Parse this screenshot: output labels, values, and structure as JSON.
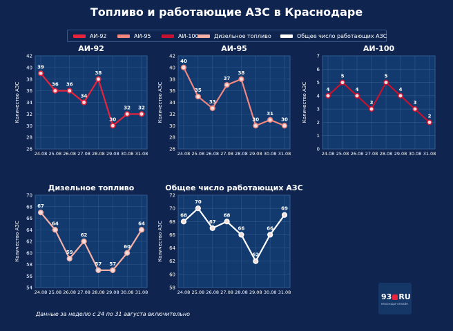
{
  "title": "Топливо и работающие АЗС в Краснодаре",
  "legend": [
    {
      "label": "АИ-92",
      "color": "#e8243c"
    },
    {
      "label": "АИ-95",
      "color": "#f08880"
    },
    {
      "label": "АИ-100",
      "color": "#c41230"
    },
    {
      "label": "Дизельное топливо",
      "color": "#f4b0a6"
    },
    {
      "label": "Общее число работающих АЗС",
      "color": "#ffffff"
    }
  ],
  "footnote": "Данные за неделю с 24 по 31 августа включительно",
  "logo": {
    "text": "93",
    "suffix": "RU",
    "subtext": "КРАСНОДАР ОНЛАЙН"
  },
  "colors": {
    "background": "#0f2550",
    "panel": "#123a6e",
    "grid": "#2f5a8e"
  },
  "chart_data": [
    {
      "type": "line",
      "title": "АИ-92",
      "ylabel": "Количество АЗС",
      "categories": [
        "24.08",
        "25.08",
        "26.08",
        "27.08",
        "28.08",
        "29.08",
        "30.08",
        "31.08"
      ],
      "series": [
        {
          "name": "АИ-92",
          "values": [
            39,
            36,
            36,
            34,
            38,
            30,
            32,
            32
          ],
          "color": "#e8243c"
        }
      ],
      "ylim": [
        26,
        42
      ],
      "yticks": [
        26,
        28,
        30,
        32,
        34,
        36,
        38,
        40,
        42
      ],
      "grid": true
    },
    {
      "type": "line",
      "title": "АИ-95",
      "ylabel": "Количество АЗС",
      "categories": [
        "24.08",
        "25.08",
        "26.08",
        "27.08",
        "28.08",
        "29.08",
        "30.08",
        "31.08"
      ],
      "series": [
        {
          "name": "АИ-95",
          "values": [
            40,
            35,
            33,
            37,
            38,
            30,
            31,
            30
          ],
          "color": "#f08880"
        }
      ],
      "ylim": [
        26,
        42
      ],
      "yticks": [
        26,
        28,
        30,
        32,
        34,
        36,
        38,
        40,
        42
      ],
      "grid": true
    },
    {
      "type": "line",
      "title": "АИ-100",
      "ylabel": "Количество АЗС",
      "categories": [
        "24.08",
        "25.08",
        "26.08",
        "27.08",
        "28.08",
        "29.08",
        "30.08",
        "31.08"
      ],
      "series": [
        {
          "name": "АИ-100",
          "values": [
            4,
            5,
            4,
            3,
            5,
            4,
            3,
            2
          ],
          "color": "#c41230"
        }
      ],
      "ylim": [
        0,
        7
      ],
      "yticks": [
        0,
        1,
        2,
        3,
        4,
        5,
        6,
        7
      ],
      "grid": true
    },
    {
      "type": "line",
      "title": "Дизельное топливо",
      "ylabel": "Количество АЗС",
      "categories": [
        "24.08",
        "25.08",
        "26.08",
        "27.08",
        "28.08",
        "29.08",
        "30.08",
        "31.08"
      ],
      "series": [
        {
          "name": "Дизельное топливо",
          "values": [
            67,
            64,
            59,
            62,
            57,
            57,
            60,
            64
          ],
          "color": "#f4b0a6"
        }
      ],
      "ylim": [
        54,
        70
      ],
      "yticks": [
        54,
        56,
        58,
        60,
        62,
        64,
        66,
        68,
        70
      ],
      "grid": true
    },
    {
      "type": "line",
      "title": "Общее число работающих АЗС",
      "ylabel": "Количество АЗС",
      "categories": [
        "24.08",
        "25.08",
        "26.08",
        "27.08",
        "28.08",
        "29.08",
        "30.08",
        "31.08"
      ],
      "series": [
        {
          "name": "Общее число работающих АЗС",
          "values": [
            68,
            70,
            67,
            68,
            66,
            62,
            66,
            69
          ],
          "color": "#ffffff"
        }
      ],
      "ylim": [
        58,
        72
      ],
      "yticks": [
        58,
        60,
        62,
        64,
        66,
        68,
        70,
        72
      ],
      "grid": true
    }
  ]
}
